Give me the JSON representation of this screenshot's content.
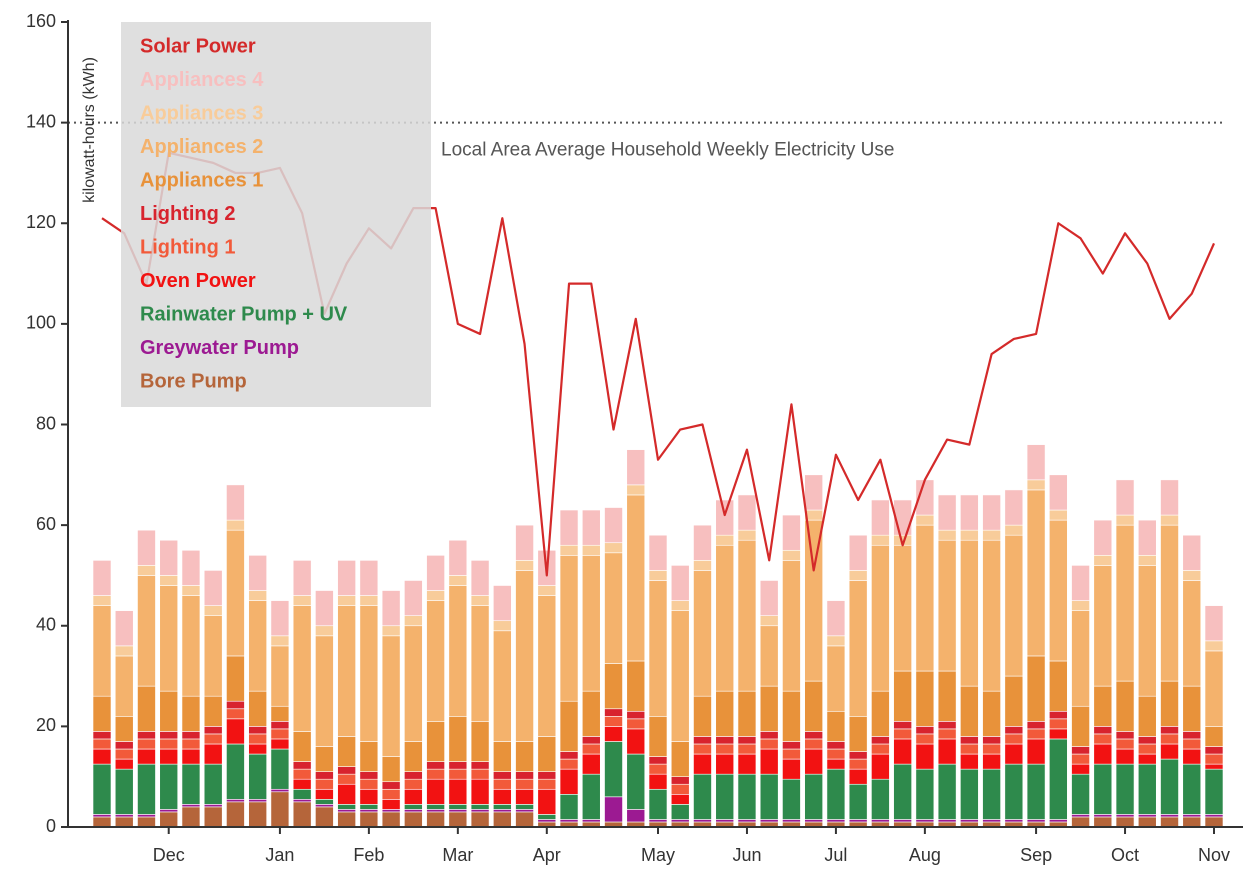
{
  "chart_data": {
    "type": "stacked_bar",
    "y_label": "kilowatt-hours (kWh)",
    "ylim": [
      0,
      160
    ],
    "yticks": [
      0,
      20,
      40,
      60,
      80,
      100,
      120,
      140,
      160
    ],
    "categories": [
      null,
      null,
      null,
      "Dec",
      null,
      null,
      null,
      null,
      "Jan",
      null,
      null,
      null,
      "Feb",
      null,
      null,
      null,
      "Mar",
      null,
      null,
      null,
      "Apr",
      null,
      null,
      null,
      null,
      "May",
      null,
      null,
      null,
      "Jun",
      null,
      null,
      null,
      "Jul",
      null,
      null,
      null,
      "Aug",
      null,
      null,
      null,
      null,
      "Sep",
      null,
      null,
      null,
      "Oct",
      null,
      null,
      null,
      "Nov"
    ],
    "reference_line": {
      "value": 140,
      "label": "Local Area Average Household Weekly Electricity Use"
    },
    "legend": "upper left",
    "series": [
      {
        "name": "Solar Power",
        "type": "line",
        "color": "#d42a2a",
        "values": [
          121,
          118,
          108,
          134,
          133,
          132,
          130,
          130,
          131,
          122,
          102,
          112,
          119,
          115,
          123,
          123,
          100,
          98,
          121,
          96,
          50,
          108,
          108,
          79,
          101,
          73,
          79,
          80,
          62,
          75,
          53,
          84,
          51,
          74,
          65,
          73,
          56,
          69,
          77,
          76,
          94,
          97,
          98,
          120,
          117,
          110,
          118,
          112,
          101,
          106,
          116
        ]
      },
      {
        "name": "Appliances 4",
        "color": "#f7bfbf",
        "values": [
          7,
          7,
          7,
          7,
          7,
          7,
          7,
          7,
          7,
          7,
          7,
          7,
          7,
          7,
          7,
          7,
          7,
          7,
          7,
          7,
          7,
          7,
          7,
          7,
          7,
          7,
          7,
          7,
          7,
          7,
          7,
          7,
          7,
          7,
          7,
          7,
          7,
          7,
          7,
          7,
          7,
          7,
          7,
          7,
          7,
          7,
          7,
          7,
          7,
          7,
          7
        ]
      },
      {
        "name": "Appliances 3",
        "color": "#f8cc9a",
        "values": [
          2,
          2,
          2,
          2,
          2,
          2,
          2,
          2,
          2,
          2,
          2,
          2,
          2,
          2,
          2,
          2,
          2,
          2,
          2,
          2,
          2,
          2,
          2,
          2,
          2,
          2,
          2,
          2,
          2,
          2,
          2,
          2,
          2,
          2,
          2,
          2,
          2,
          2,
          2,
          2,
          2,
          2,
          2,
          2,
          2,
          2,
          2,
          2,
          2,
          2,
          2
        ]
      },
      {
        "name": "Appliances 2",
        "color": "#f4b26c",
        "values": [
          18,
          12,
          22,
          21,
          20,
          16,
          25,
          18,
          12,
          25,
          22,
          26,
          27,
          24,
          23,
          24,
          26,
          23,
          22,
          34,
          28,
          29,
          27,
          22,
          33,
          27,
          26,
          25,
          29,
          30,
          12,
          26,
          32,
          13,
          27,
          29,
          25,
          29,
          26,
          29,
          30,
          28,
          33,
          28,
          19,
          24,
          31,
          26,
          31,
          21,
          15
        ]
      },
      {
        "name": "Appliances 1",
        "color": "#e8923a",
        "values": [
          7,
          5,
          9,
          8,
          7,
          6,
          9,
          7,
          3,
          6,
          5,
          6,
          6,
          5,
          6,
          8,
          9,
          8,
          6,
          6,
          7,
          10,
          9,
          9,
          10,
          8,
          7,
          8,
          9,
          9,
          9,
          10,
          10,
          6,
          7,
          9,
          10,
          11,
          10,
          10,
          9,
          10,
          13,
          10,
          8,
          8,
          10,
          8,
          9,
          9,
          4
        ]
      },
      {
        "name": "Lighting 2",
        "color": "#d8232e",
        "values": [
          1.5,
          1.5,
          1.5,
          1.5,
          1.5,
          1.5,
          1.5,
          1.5,
          1.5,
          1.5,
          1.5,
          1.5,
          1.5,
          1.5,
          1.5,
          1.5,
          1.5,
          1.5,
          1.5,
          1.5,
          1.5,
          1.5,
          1.5,
          1.5,
          1.5,
          1.5,
          1.5,
          1.5,
          1.5,
          1.5,
          1.5,
          1.5,
          1.5,
          1.5,
          1.5,
          1.5,
          1.5,
          1.5,
          1.5,
          1.5,
          1.5,
          1.5,
          1.5,
          1.5,
          1.5,
          1.5,
          1.5,
          1.5,
          1.5,
          1.5,
          1.5
        ]
      },
      {
        "name": "Lighting 1",
        "color": "#f25a3a",
        "values": [
          2,
          2,
          2,
          2,
          2,
          2,
          2,
          2,
          2,
          2,
          2,
          2,
          2,
          2,
          2,
          2,
          2,
          2,
          2,
          2,
          2,
          2,
          2,
          2,
          2,
          2,
          2,
          2,
          2,
          2,
          2,
          2,
          2,
          2,
          2,
          2,
          2,
          2,
          2,
          2,
          2,
          2,
          2,
          2,
          2,
          2,
          2,
          2,
          2,
          2,
          2
        ]
      },
      {
        "name": "Oven Power",
        "color": "#f21212",
        "values": [
          3,
          2,
          3,
          3,
          3,
          4,
          5,
          2,
          2,
          2,
          2,
          4,
          3,
          2,
          3,
          5,
          5,
          5,
          3,
          3,
          5,
          5,
          4,
          3,
          5,
          3,
          2,
          4,
          4,
          4,
          5,
          4,
          5,
          2,
          3,
          5,
          5,
          5,
          5,
          3,
          3,
          4,
          5,
          2,
          2,
          4,
          3,
          2,
          3,
          3,
          1
        ]
      },
      {
        "name": "Rainwater Pump + UV",
        "color": "#2e8a4c",
        "values": [
          10,
          9,
          10,
          9,
          8,
          8,
          11,
          9,
          8,
          2,
          1,
          1,
          1,
          0,
          1,
          1,
          1,
          1,
          1,
          1,
          1,
          5,
          9,
          11,
          11,
          6,
          3,
          9,
          9,
          9,
          9,
          8,
          9,
          10,
          7,
          8,
          11,
          10,
          11,
          10,
          10,
          11,
          11,
          16,
          8,
          10,
          10,
          10,
          11,
          10,
          9
        ]
      },
      {
        "name": "Greywater Pump",
        "color": "#9c1a92",
        "values": [
          0.5,
          0.5,
          0.5,
          0.5,
          0.5,
          0.5,
          0.5,
          0.5,
          0.5,
          0.5,
          0.5,
          0.5,
          0.5,
          0.5,
          0.5,
          0.5,
          0.5,
          0.5,
          0.5,
          0.5,
          0.5,
          0.5,
          0.5,
          5,
          2.5,
          0.5,
          0.5,
          0.5,
          0.5,
          0.5,
          0.5,
          0.5,
          0.5,
          0.5,
          0.5,
          0.5,
          0.5,
          0.5,
          0.5,
          0.5,
          0.5,
          0.5,
          0.5,
          0.5,
          0.5,
          0.5,
          0.5,
          0.5,
          0.5,
          0.5,
          0.5
        ]
      },
      {
        "name": "Bore Pump",
        "color": "#b5653a",
        "values": [
          2,
          2,
          2,
          3,
          4,
          4,
          5,
          5,
          7,
          5,
          4,
          3,
          3,
          3,
          3,
          3,
          3,
          3,
          3,
          3,
          1,
          1,
          1,
          1,
          1,
          1,
          1,
          1,
          1,
          1,
          1,
          1,
          1,
          1,
          1,
          1,
          1,
          1,
          1,
          1,
          1,
          1,
          1,
          1,
          2,
          2,
          2,
          2,
          2,
          2,
          2
        ]
      }
    ]
  }
}
